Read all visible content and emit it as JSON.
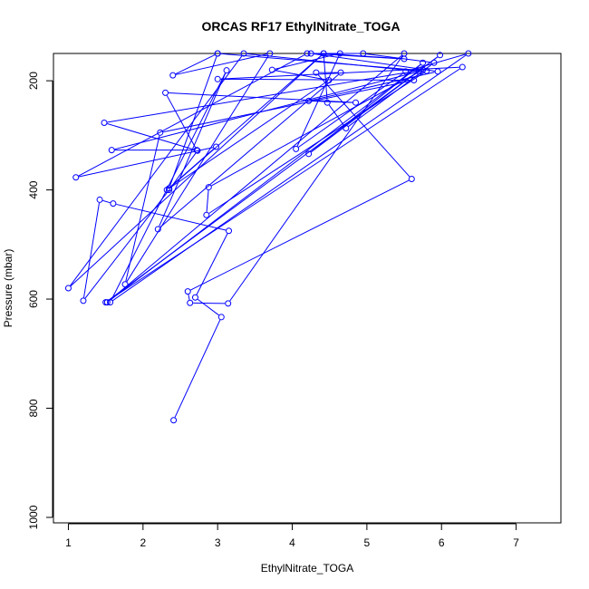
{
  "chart_data": {
    "type": "line",
    "title": "ORCAS RF17 EthylNitrate_TOGA",
    "xlabel": "EthylNitrate_TOGA",
    "ylabel": "Pressure (mbar)",
    "xlim": [
      0.8,
      7.6
    ],
    "ylim": [
      1010,
      150
    ],
    "y_reversed": true,
    "xticks": [
      1,
      2,
      3,
      4,
      5,
      6,
      7
    ],
    "yticks": [
      200,
      400,
      600,
      800,
      1000
    ],
    "grid": false,
    "series": [
      {
        "color": "#0000ff",
        "points": [
          [
            2.41,
            822
          ],
          [
            3.05,
            633
          ],
          [
            2.7,
            597
          ],
          [
            3.15,
            475
          ],
          [
            1.6,
            425
          ],
          [
            1.42,
            418
          ],
          [
            1.2,
            603
          ],
          [
            2.35,
            400
          ],
          [
            2.73,
            328
          ],
          [
            1.48,
            277
          ],
          [
            5.75,
            180
          ],
          [
            2.88,
            395
          ],
          [
            2.85,
            446
          ],
          [
            5.8,
            182
          ],
          [
            3.0,
            150
          ],
          [
            2.4,
            190
          ],
          [
            3.7,
            150
          ],
          [
            1.76,
            573
          ],
          [
            2.23,
            295
          ],
          [
            5.63,
            199
          ],
          [
            3.0,
            197
          ],
          [
            6.28,
            175
          ],
          [
            1.5,
            606
          ],
          [
            5.98,
            153
          ],
          [
            4.22,
            334
          ],
          [
            5.75,
            167
          ],
          [
            1.52,
            606
          ],
          [
            5.5,
            150
          ],
          [
            3.14,
            608
          ],
          [
            2.63,
            607
          ],
          [
            2.6,
            586
          ],
          [
            5.6,
            380
          ],
          [
            4.32,
            185
          ],
          [
            4.65,
            185
          ],
          [
            2.2,
            472
          ],
          [
            3.12,
            181
          ],
          [
            1.56,
            606
          ],
          [
            6.36,
            150
          ],
          [
            5.52,
            183
          ],
          [
            4.05,
            325
          ],
          [
            4.64,
            150
          ],
          [
            3.73,
            180
          ],
          [
            4.49,
            199
          ],
          [
            2.32,
            400
          ],
          [
            2.98,
            321
          ],
          [
            1.1,
            377
          ],
          [
            4.2,
            150
          ],
          [
            4.95,
            150
          ],
          [
            5.9,
            167
          ],
          [
            4.72,
            287
          ],
          [
            4.47,
            240
          ],
          [
            4.42,
            150
          ],
          [
            1.0,
            580
          ],
          [
            3.35,
            150
          ],
          [
            5.7,
            183
          ],
          [
            1.58,
            327
          ],
          [
            2.72,
            327
          ],
          [
            2.3,
            222
          ],
          [
            4.85,
            240
          ],
          [
            4.22,
            237
          ],
          [
            5.95,
            183
          ],
          [
            4.25,
            150
          ],
          [
            5.5,
            160
          ],
          [
            4.42,
            150
          ],
          [
            2.35,
            397
          ],
          [
            3.0,
            150
          ]
        ]
      }
    ]
  }
}
